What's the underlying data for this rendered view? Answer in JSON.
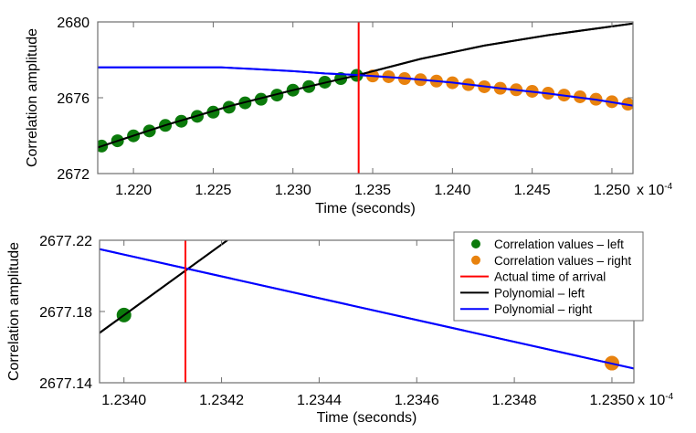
{
  "chart_data": [
    {
      "type": "line",
      "id": "overview",
      "xlabel": "Time (seconds)",
      "ylabel": "Correlation amplitude",
      "x_exponent_label": "x 10",
      "x_exponent_power": "-4",
      "xlim": [
        1.21776,
        1.25132
      ],
      "ylim": [
        2672,
        2680
      ],
      "xticks": [
        1.22,
        1.225,
        1.23,
        1.235,
        1.24,
        1.245,
        1.25
      ],
      "xtick_labels": [
        "1.220",
        "1.225",
        "1.230",
        "1.235",
        "1.240",
        "1.245",
        "1.250"
      ],
      "yticks": [
        2672,
        2676,
        2680
      ],
      "ytick_labels": [
        "2672",
        "2676",
        "2680"
      ],
      "grid": false,
      "vline": {
        "name": "Actual time of arrival",
        "x": 1.23412,
        "color": "#ff0000"
      },
      "series": [
        {
          "name": "Correlation values – left",
          "kind": "scatter",
          "color": "#0b7a0b",
          "x": [
            1.218,
            1.219,
            1.22,
            1.221,
            1.222,
            1.223,
            1.224,
            1.225,
            1.226,
            1.227,
            1.228,
            1.229,
            1.23,
            1.231,
            1.232,
            1.233,
            1.234
          ],
          "y": [
            2673.45,
            2673.73,
            2673.99,
            2674.25,
            2674.54,
            2674.76,
            2675.02,
            2675.24,
            2675.5,
            2675.73,
            2675.92,
            2676.14,
            2676.4,
            2676.59,
            2676.82,
            2677.01,
            2677.18
          ]
        },
        {
          "name": "Correlation values – right",
          "kind": "scatter",
          "color": "#e8820e",
          "x": [
            1.235,
            1.236,
            1.237,
            1.238,
            1.239,
            1.24,
            1.241,
            1.242,
            1.243,
            1.244,
            1.245,
            1.246,
            1.247,
            1.248,
            1.249,
            1.25,
            1.251
          ],
          "y": [
            2677.15,
            2677.11,
            2677.01,
            2676.95,
            2676.88,
            2676.79,
            2676.69,
            2676.58,
            2676.5,
            2676.42,
            2676.34,
            2676.24,
            2676.14,
            2676.05,
            2675.92,
            2675.79,
            2675.66
          ]
        },
        {
          "name": "Polynomial – left",
          "kind": "line",
          "color": "#000000",
          "x": [
            1.21776,
            1.222,
            1.226,
            1.23,
            1.2341,
            1.238,
            1.242,
            1.246,
            1.25132
          ],
          "y": [
            2673.38,
            2674.55,
            2675.55,
            2676.4,
            2677.2,
            2678.05,
            2678.75,
            2679.3,
            2679.92
          ]
        },
        {
          "name": "Polynomial – right",
          "kind": "line",
          "color": "#0000ff",
          "x": [
            1.21776,
            1.2255,
            1.2275,
            1.23,
            1.232,
            1.2341,
            1.237,
            1.24,
            1.243,
            1.246,
            1.249,
            1.25132
          ],
          "y": [
            2677.6,
            2677.6,
            2677.52,
            2677.4,
            2677.28,
            2677.2,
            2677.03,
            2676.8,
            2676.5,
            2676.22,
            2675.9,
            2675.58
          ]
        }
      ]
    },
    {
      "type": "line",
      "id": "zoomed",
      "xlabel": "Time (seconds)",
      "ylabel": "Correlation amplitude",
      "x_exponent_label": "x 10",
      "x_exponent_power": "-4",
      "xlim": [
        1.23395,
        1.235045
      ],
      "ylim": [
        2677.14,
        2677.22
      ],
      "xticks": [
        1.234,
        1.2342,
        1.2344,
        1.2346,
        1.2348,
        1.235
      ],
      "xtick_labels": [
        "1.2340",
        "1.2342",
        "1.2344",
        "1.2346",
        "1.2348",
        "1.2350"
      ],
      "yticks": [
        2677.14,
        2677.18,
        2677.22
      ],
      "ytick_labels": [
        "2677.14",
        "2677.18",
        "2677.22"
      ],
      "grid": false,
      "vline": {
        "name": "Actual time of arrival",
        "x": 1.234126,
        "color": "#ff0000"
      },
      "series": [
        {
          "name": "Correlation values – left",
          "kind": "scatter",
          "color": "#0b7a0b",
          "x": [
            1.234
          ],
          "y": [
            2677.178
          ]
        },
        {
          "name": "Correlation values – right",
          "kind": "scatter",
          "color": "#e8820e",
          "x": [
            1.235
          ],
          "y": [
            2677.151
          ]
        },
        {
          "name": "Polynomial – left",
          "kind": "line",
          "color": "#000000",
          "x": [
            1.23395,
            1.234212
          ],
          "y": [
            2677.168,
            2677.22
          ]
        },
        {
          "name": "Polynomial – right",
          "kind": "line",
          "color": "#0000ff",
          "x": [
            1.23395,
            1.235045
          ],
          "y": [
            2677.215,
            2677.148
          ]
        }
      ],
      "legend": {
        "placement": "top-right",
        "entries": [
          {
            "label": "Correlation values – left",
            "marker": "dot",
            "color": "#0b7a0b"
          },
          {
            "label": "Correlation values – right",
            "marker": "dot",
            "color": "#e8820e"
          },
          {
            "label": "Actual time of arrival",
            "marker": "line",
            "color": "#ff0000"
          },
          {
            "label": "Polynomial – left",
            "marker": "line",
            "color": "#000000"
          },
          {
            "label": "Polynomial – right",
            "marker": "line",
            "color": "#0000ff"
          }
        ]
      }
    }
  ]
}
